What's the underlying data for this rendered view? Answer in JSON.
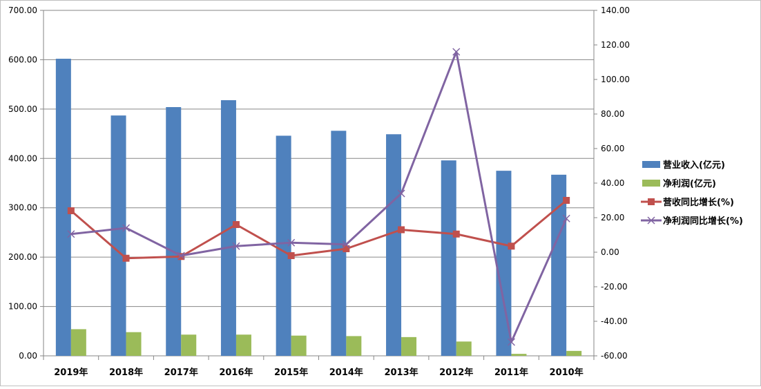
{
  "chart_data": {
    "type": "bar+line",
    "title": "",
    "categories": [
      "2019年",
      "2018年",
      "2017年",
      "2016年",
      "2015年",
      "2014年",
      "2013年",
      "2012年",
      "2011年",
      "2010年"
    ],
    "y_left": {
      "ylim": [
        0,
        700
      ],
      "ticks": [
        "0.00",
        "100.00",
        "200.00",
        "300.00",
        "400.00",
        "500.00",
        "600.00",
        "700.00"
      ]
    },
    "y_right": {
      "ylim": [
        -60,
        140
      ],
      "ticks": [
        "-60.00",
        "-40.00",
        "-20.00",
        "0.00",
        "20.00",
        "40.00",
        "60.00",
        "80.00",
        "100.00",
        "120.00",
        "140.00"
      ]
    },
    "grid": true,
    "legend_position": "right",
    "series": [
      {
        "name": "营业收入(亿元)",
        "kind": "bar",
        "axis": "left",
        "color": "#4F81BD",
        "values": [
          602,
          487,
          504,
          518,
          446,
          456,
          449,
          396,
          375,
          367
        ]
      },
      {
        "name": "净利润(亿元)",
        "kind": "bar",
        "axis": "left",
        "color": "#9BBB59",
        "values": [
          54,
          48,
          43,
          43,
          41,
          40,
          38,
          29,
          4,
          10
        ]
      },
      {
        "name": "营收同比增长(%)",
        "kind": "line",
        "marker": "square",
        "axis": "right",
        "color": "#C0504D",
        "values": [
          24,
          -3.5,
          -2.5,
          16,
          -2,
          2,
          13,
          10.5,
          3.5,
          30
        ]
      },
      {
        "name": "净利润同比增长(%)",
        "kind": "line",
        "marker": "x",
        "axis": "right",
        "color": "#8064A2",
        "values": [
          10.5,
          14,
          -2,
          3.5,
          5.5,
          4.5,
          34,
          116,
          -52,
          19.5
        ]
      }
    ]
  }
}
